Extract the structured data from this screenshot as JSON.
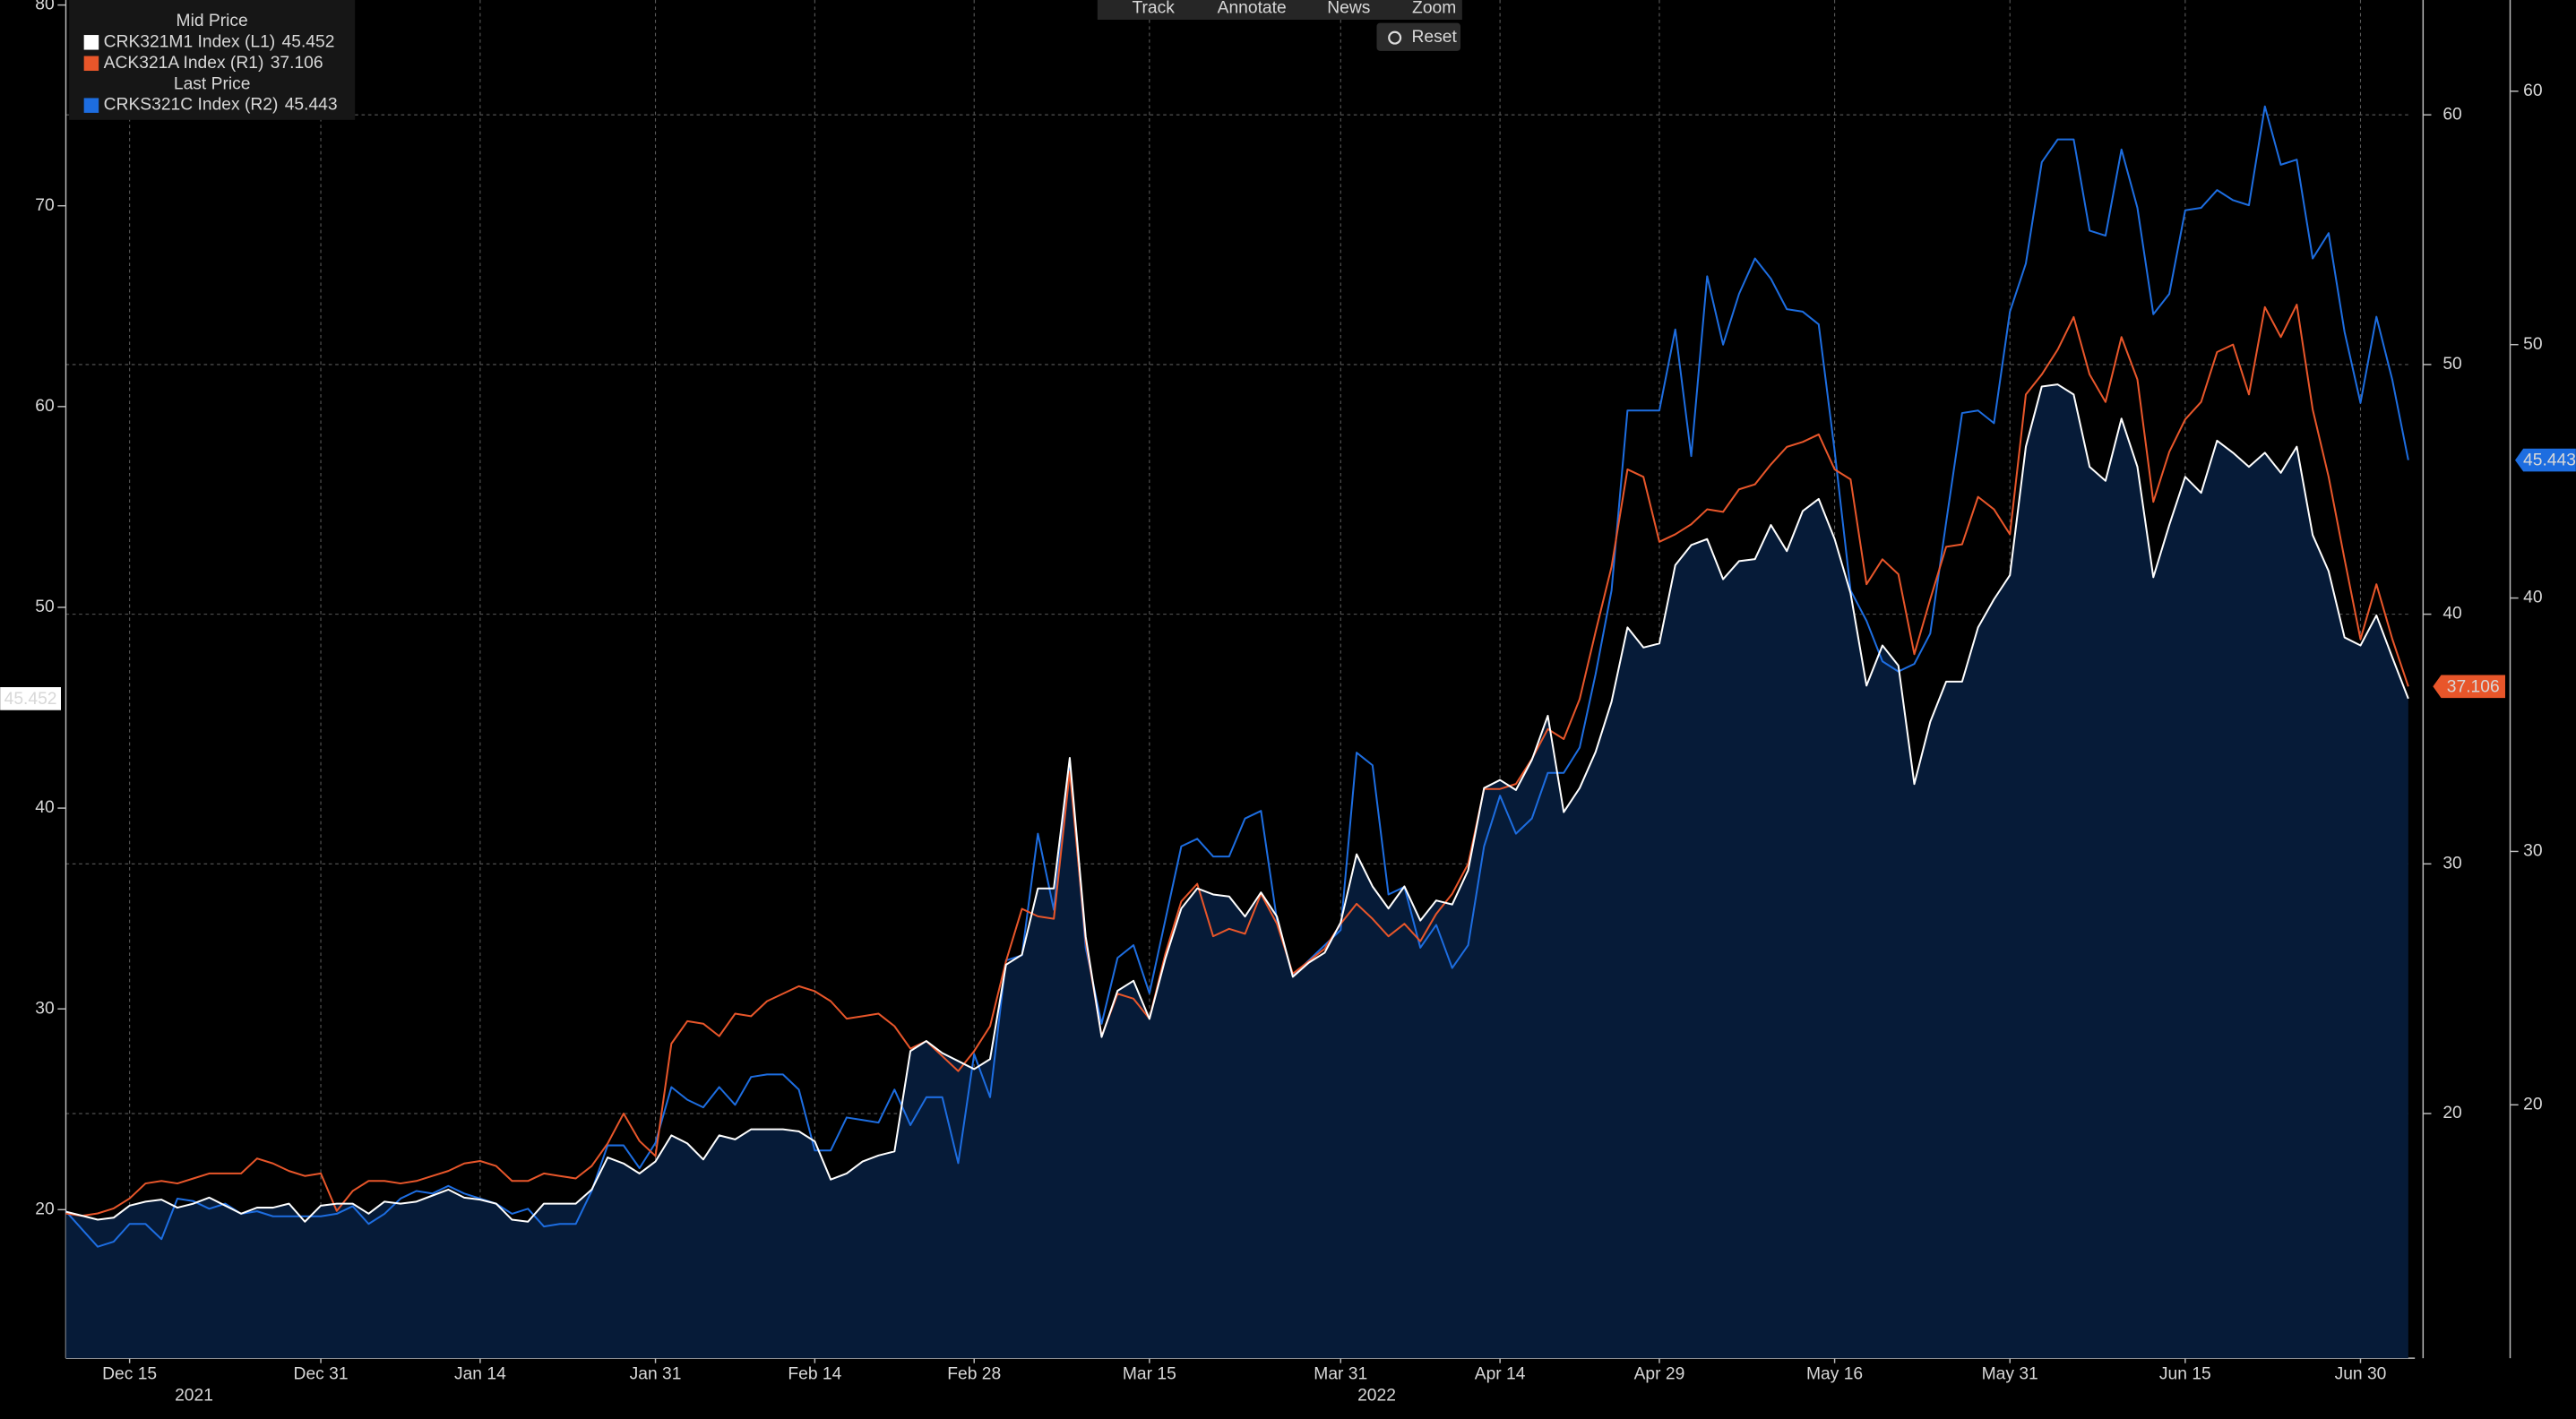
{
  "toolbar": {
    "buttons": [
      "Track",
      "Annotate",
      "News",
      "Zoom"
    ],
    "reset": "Reset"
  },
  "chart_data": {
    "type": "line",
    "legend_groups": [
      "Mid Price",
      "Last Price"
    ],
    "x_group_labels": [
      "2021",
      "2022"
    ],
    "categories": [
      null,
      null,
      null,
      null,
      "Dec 15",
      null,
      null,
      null,
      null,
      null,
      null,
      null,
      null,
      null,
      null,
      null,
      "Dec 31",
      null,
      null,
      null,
      null,
      null,
      null,
      null,
      null,
      null,
      "Jan 14",
      null,
      null,
      null,
      null,
      null,
      null,
      null,
      null,
      null,
      null,
      "Jan 31",
      null,
      null,
      null,
      null,
      null,
      null,
      null,
      null,
      null,
      "Feb 14",
      null,
      null,
      null,
      null,
      null,
      null,
      null,
      null,
      null,
      "Feb 28",
      null,
      null,
      null,
      null,
      null,
      null,
      null,
      null,
      null,
      null,
      "Mar 15",
      null,
      null,
      null,
      null,
      null,
      null,
      null,
      null,
      null,
      null,
      null,
      "Mar 31",
      null,
      null,
      null,
      null,
      null,
      null,
      null,
      null,
      null,
      "Apr 14",
      null,
      null,
      null,
      null,
      null,
      null,
      null,
      null,
      null,
      "Apr 29",
      null,
      null,
      null,
      null,
      null,
      null,
      null,
      null,
      null,
      null,
      "May 16",
      null,
      null,
      null,
      null,
      null,
      null,
      null,
      null,
      null,
      null,
      "May 31",
      null,
      null,
      null,
      null,
      null,
      null,
      null,
      null,
      null,
      null,
      "Jun 15",
      null,
      null,
      null,
      null,
      null,
      null,
      null,
      null,
      null,
      null,
      "Jun 30",
      null,
      null,
      null
    ],
    "ylim": [
      12.6,
      80.25
    ],
    "yticks": [
      20,
      30,
      40,
      50,
      60,
      70,
      80
    ],
    "y2lim": [
      10.2,
      64.6
    ],
    "y2ticks": [
      20,
      30,
      40,
      50,
      60
    ],
    "y3lim": [
      10.0,
      63.6
    ],
    "y3ticks": [
      20,
      30,
      40,
      50,
      60
    ],
    "grid": true,
    "grid_axis": "y2",
    "series": [
      {
        "name": "CRK321M1 Index (L1)",
        "color": "#ffffff",
        "fill": "#061b38",
        "axis": "y",
        "values": [
          19.9,
          19.7,
          19.5,
          19.6,
          20.2,
          20.4,
          20.5,
          20.1,
          20.3,
          20.6,
          20.2,
          19.8,
          20.1,
          20.1,
          20.3,
          19.4,
          20.2,
          20.3,
          20.3,
          19.8,
          20.4,
          20.3,
          20.4,
          20.7,
          21.0,
          20.6,
          20.5,
          20.3,
          19.5,
          19.4,
          20.3,
          20.3,
          20.3,
          21.0,
          22.6,
          22.3,
          21.8,
          22.4,
          23.7,
          23.3,
          22.5,
          23.7,
          23.5,
          24.0,
          24.0,
          24.0,
          23.9,
          23.4,
          21.5,
          21.8,
          22.4,
          22.7,
          22.9,
          27.9,
          28.4,
          27.8,
          27.4,
          27.0,
          27.5,
          32.2,
          32.7,
          36.0,
          36.0,
          42.5,
          33.6,
          28.6,
          30.9,
          31.4,
          29.5,
          32.5,
          35.0,
          36.0,
          35.7,
          35.6,
          34.6,
          35.8,
          34.6,
          31.6,
          32.3,
          32.8,
          34.3,
          37.7,
          36.1,
          35.0,
          36.1,
          34.4,
          35.4,
          35.2,
          36.9,
          41.0,
          41.4,
          40.9,
          42.4,
          44.6,
          39.8,
          41.0,
          42.8,
          45.3,
          49.0,
          48.0,
          48.2,
          52.1,
          53.1,
          53.4,
          51.4,
          52.3,
          52.4,
          54.1,
          52.8,
          54.8,
          55.4,
          53.4,
          50.7,
          46.1,
          48.1,
          47.1,
          41.2,
          44.3,
          46.3,
          46.3,
          49.0,
          50.4,
          51.6,
          58.0,
          61.0,
          61.1,
          60.6,
          57.0,
          56.3,
          59.4,
          57.0,
          51.5,
          54.1,
          56.5,
          55.7,
          58.3,
          57.7,
          57.0,
          57.7,
          56.7,
          58.0,
          53.6,
          51.8,
          48.5,
          48.1,
          49.6,
          47.5,
          45.452
        ]
      },
      {
        "name": "ACK321A Index (R1)",
        "color": "#e8562a",
        "axis": "y2",
        "values": [
          16.0,
          15.9,
          16.0,
          16.2,
          16.6,
          17.2,
          17.3,
          17.2,
          17.4,
          17.6,
          17.6,
          17.6,
          18.2,
          18.0,
          17.7,
          17.5,
          17.6,
          16.1,
          16.9,
          17.3,
          17.3,
          17.2,
          17.3,
          17.5,
          17.7,
          18.0,
          18.1,
          17.9,
          17.3,
          17.3,
          17.6,
          17.5,
          17.4,
          17.9,
          18.8,
          20.0,
          18.9,
          18.3,
          22.8,
          23.7,
          23.6,
          23.1,
          24.0,
          23.9,
          24.5,
          24.8,
          25.1,
          24.9,
          24.5,
          23.8,
          23.9,
          24.0,
          23.5,
          22.6,
          22.9,
          22.3,
          21.7,
          22.5,
          23.5,
          26.1,
          28.2,
          27.9,
          27.8,
          33.7,
          26.9,
          23.1,
          24.8,
          24.6,
          23.8,
          26.4,
          28.5,
          29.2,
          27.1,
          27.4,
          27.2,
          28.8,
          27.6,
          25.6,
          26.1,
          26.6,
          27.6,
          28.4,
          27.8,
          27.1,
          27.6,
          26.9,
          28.0,
          28.8,
          30.0,
          33.0,
          33.0,
          33.2,
          34.2,
          35.4,
          35.0,
          36.6,
          39.3,
          41.9,
          45.8,
          45.5,
          42.9,
          43.2,
          43.6,
          44.2,
          44.1,
          45.0,
          45.2,
          46.0,
          46.7,
          46.9,
          47.2,
          45.8,
          45.4,
          41.2,
          42.2,
          41.6,
          38.4,
          40.6,
          42.7,
          42.8,
          44.7,
          44.2,
          43.2,
          48.8,
          49.6,
          50.6,
          51.9,
          49.6,
          48.5,
          51.1,
          49.4,
          44.5,
          46.5,
          47.8,
          48.5,
          50.5,
          50.8,
          48.8,
          52.3,
          51.1,
          52.4,
          48.2,
          45.5,
          42.2,
          39.0,
          41.2,
          39.0,
          37.106
        ]
      },
      {
        "name": "CRKS321C Index (R2)",
        "color": "#1d6de0",
        "axis": "y3",
        "values": [
          15.8,
          15.1,
          14.4,
          14.6,
          15.3,
          15.3,
          14.7,
          16.3,
          16.2,
          15.9,
          16.1,
          15.7,
          15.8,
          15.6,
          15.6,
          15.6,
          15.6,
          15.7,
          16.0,
          15.3,
          15.7,
          16.3,
          16.6,
          16.5,
          16.8,
          16.5,
          16.3,
          16.1,
          15.7,
          15.9,
          15.2,
          15.3,
          15.3,
          16.6,
          18.4,
          18.4,
          17.5,
          18.5,
          20.7,
          20.2,
          19.9,
          20.7,
          20.0,
          21.1,
          21.2,
          21.2,
          20.6,
          18.2,
          18.2,
          19.5,
          19.4,
          19.3,
          20.6,
          19.2,
          20.3,
          20.3,
          17.7,
          22.0,
          20.3,
          25.7,
          25.9,
          30.7,
          27.7,
          33.5,
          26.2,
          23.2,
          25.8,
          26.3,
          24.4,
          27.3,
          30.2,
          30.5,
          29.8,
          29.8,
          31.3,
          31.6,
          27.3,
          25.1,
          25.7,
          26.3,
          26.9,
          33.9,
          33.4,
          28.3,
          28.6,
          26.2,
          27.1,
          25.4,
          26.3,
          30.2,
          32.2,
          30.7,
          31.3,
          33.1,
          33.1,
          34.1,
          37.0,
          40.3,
          47.4,
          47.4,
          47.4,
          50.6,
          45.6,
          52.7,
          50.0,
          52.0,
          53.4,
          52.6,
          51.4,
          51.3,
          50.8,
          45.8,
          40.3,
          39.1,
          37.5,
          37.1,
          37.4,
          38.6,
          43.0,
          47.3,
          47.4,
          46.9,
          51.3,
          53.2,
          57.2,
          58.1,
          58.1,
          54.5,
          54.3,
          57.7,
          55.4,
          51.2,
          52.0,
          55.3,
          55.4,
          56.1,
          55.7,
          55.5,
          59.4,
          57.1,
          57.3,
          53.4,
          54.4,
          50.5,
          47.7,
          51.1,
          48.6,
          45.443
        ]
      }
    ]
  }
}
